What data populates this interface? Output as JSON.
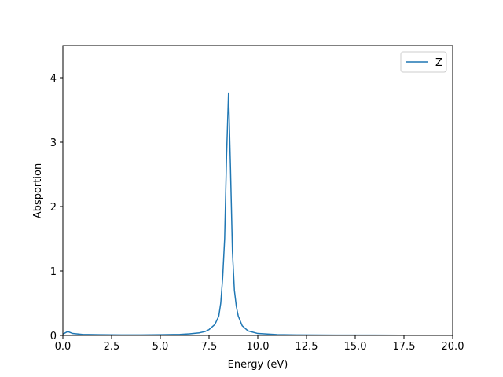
{
  "chart_data": {
    "type": "line",
    "xlabel": "Energy (eV)",
    "ylabel": "Absportion",
    "x": [
      0,
      0.25,
      0.5,
      1,
      2,
      3,
      4,
      5,
      6,
      6.5,
      7,
      7.3,
      7.5,
      7.8,
      8.0,
      8.1,
      8.2,
      8.3,
      8.4,
      8.5,
      8.6,
      8.7,
      8.8,
      8.9,
      9.0,
      9.2,
      9.5,
      10,
      11,
      12,
      14,
      16,
      18,
      20
    ],
    "series": [
      {
        "name": "Z",
        "color": "#1f77b4",
        "values": [
          0.02,
          0.06,
          0.03,
          0.015,
          0.01,
          0.008,
          0.008,
          0.01,
          0.015,
          0.025,
          0.04,
          0.06,
          0.09,
          0.17,
          0.3,
          0.5,
          0.9,
          1.5,
          2.8,
          3.77,
          2.6,
          1.3,
          0.7,
          0.45,
          0.3,
          0.15,
          0.07,
          0.03,
          0.012,
          0.008,
          0.005,
          0.004,
          0.003,
          0.003
        ]
      }
    ],
    "xlim": [
      0,
      20
    ],
    "xticks": [
      {
        "value": 0,
        "label": "0.0"
      },
      2.5,
      {
        "value": 5,
        "label": "5.0"
      },
      7.5,
      {
        "value": 10,
        "label": "10.0"
      },
      12.5,
      {
        "value": 15,
        "label": "15.0"
      },
      17.5,
      {
        "value": 20,
        "label": "20.0"
      }
    ],
    "ylim": [
      0,
      4.5
    ],
    "yticks": [
      0,
      1,
      2,
      3,
      4
    ],
    "legend": "upper right"
  }
}
